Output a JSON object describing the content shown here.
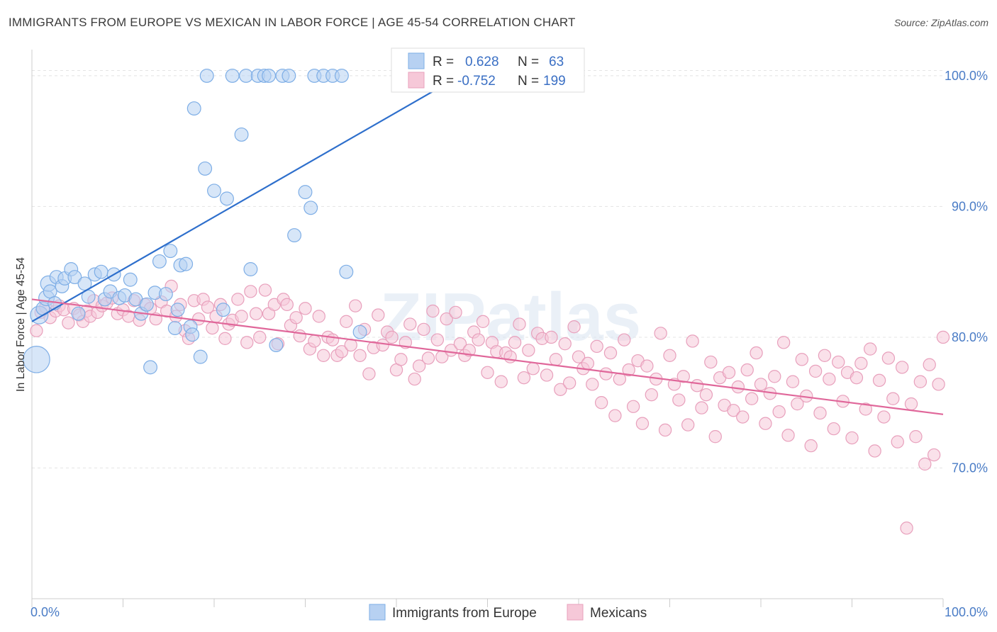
{
  "title": "IMMIGRANTS FROM EUROPE VS MEXICAN IN LABOR FORCE | AGE 45-54 CORRELATION CHART",
  "source": "Source: ZipAtlas.com",
  "watermark": "ZIPatlas",
  "chart_data": {
    "type": "scatter",
    "xlabel": "",
    "ylabel": "In Labor Force | Age 45-54",
    "xlim": [
      0,
      100
    ],
    "ylim": [
      60,
      102
    ],
    "x_tick_labels": [
      "0.0%",
      "100.0%"
    ],
    "y_ticks": [
      70,
      80,
      90,
      100
    ],
    "y_tick_labels": [
      "70.0%",
      "80.0%",
      "90.0%",
      "100.0%"
    ],
    "grid": true,
    "legend_position": "top-center",
    "stats": [
      {
        "r_label": "R =",
        "r_value": "0.628",
        "n_label": "N =",
        "n_value": "63"
      },
      {
        "r_label": "R =",
        "r_value": "-0.752",
        "n_label": "N =",
        "n_value": "199"
      }
    ],
    "series": [
      {
        "name": "Immigrants from Europe",
        "color": "#7eaee6",
        "fill": "#b7d1f2",
        "trend_color": "#2e6fcc",
        "trend": {
          "x": [
            0,
            47
          ],
          "y": [
            81.2,
            100
          ]
        },
        "points": [
          [
            0.5,
            78.3
          ],
          [
            0.8,
            81.7
          ],
          [
            1.2,
            82.2
          ],
          [
            1.6,
            83.0
          ],
          [
            1.8,
            84.1
          ],
          [
            2.0,
            83.5
          ],
          [
            2.5,
            82.6
          ],
          [
            2.7,
            84.6
          ],
          [
            3.3,
            83.9
          ],
          [
            3.6,
            84.5
          ],
          [
            4.3,
            85.2
          ],
          [
            4.7,
            84.6
          ],
          [
            5.1,
            81.8
          ],
          [
            5.8,
            84.1
          ],
          [
            6.2,
            83.1
          ],
          [
            6.9,
            84.8
          ],
          [
            7.6,
            85.0
          ],
          [
            8.0,
            82.9
          ],
          [
            8.6,
            83.5
          ],
          [
            9.0,
            84.8
          ],
          [
            9.6,
            83.0
          ],
          [
            10.2,
            83.2
          ],
          [
            10.8,
            84.4
          ],
          [
            11.4,
            82.9
          ],
          [
            12.0,
            81.8
          ],
          [
            12.6,
            82.5
          ],
          [
            13.0,
            77.7
          ],
          [
            13.5,
            83.4
          ],
          [
            14.0,
            85.8
          ],
          [
            14.7,
            83.3
          ],
          [
            15.2,
            86.6
          ],
          [
            15.7,
            80.7
          ],
          [
            16.0,
            82.1
          ],
          [
            16.3,
            85.5
          ],
          [
            16.9,
            85.6
          ],
          [
            17.4,
            80.8
          ],
          [
            17.6,
            80.2
          ],
          [
            17.8,
            97.5
          ],
          [
            18.5,
            78.5
          ],
          [
            19.0,
            92.9
          ],
          [
            19.2,
            100
          ],
          [
            20.0,
            91.2
          ],
          [
            21.0,
            82.1
          ],
          [
            21.4,
            90.6
          ],
          [
            22.0,
            100
          ],
          [
            23.0,
            95.5
          ],
          [
            23.5,
            100
          ],
          [
            24.0,
            85.2
          ],
          [
            24.8,
            100
          ],
          [
            25.5,
            100
          ],
          [
            26.0,
            100
          ],
          [
            26.8,
            79.4
          ],
          [
            27.5,
            100
          ],
          [
            28.2,
            100
          ],
          [
            28.8,
            87.8
          ],
          [
            30.0,
            91.1
          ],
          [
            30.6,
            89.9
          ],
          [
            31.0,
            100
          ],
          [
            32.0,
            100
          ],
          [
            33.0,
            100
          ],
          [
            34.0,
            100
          ],
          [
            34.5,
            85.0
          ],
          [
            36.0,
            80.4
          ]
        ],
        "sizes": [
          24,
          16,
          12,
          14,
          14,
          12,
          12,
          12,
          12,
          12,
          12,
          12,
          12,
          12,
          12,
          12,
          12,
          12,
          12,
          12,
          12,
          12,
          12,
          12,
          12,
          12,
          12,
          12,
          12,
          12,
          12,
          12,
          12,
          12,
          12,
          12,
          12,
          12,
          12,
          12,
          12,
          12,
          12,
          12,
          12,
          12,
          12,
          12,
          12,
          12,
          12,
          12,
          12,
          12,
          12,
          12,
          12,
          12,
          12,
          12,
          12,
          12,
          12
        ]
      },
      {
        "name": "Mexicans",
        "color": "#e8a0bc",
        "fill": "#f6c8d8",
        "trend_color": "#e0679a",
        "trend": {
          "x": [
            0,
            100
          ],
          "y": [
            82.9,
            74.1
          ]
        },
        "points": [
          [
            0.5,
            80.5
          ],
          [
            1.0,
            81.9
          ],
          [
            1.5,
            82.3
          ],
          [
            2.0,
            81.5
          ],
          [
            2.6,
            82.0
          ],
          [
            3.0,
            82.4
          ],
          [
            3.5,
            82.1
          ],
          [
            4.0,
            81.1
          ],
          [
            4.6,
            82.2
          ],
          [
            5.2,
            81.7
          ],
          [
            5.6,
            81.2
          ],
          [
            6.0,
            82.0
          ],
          [
            6.4,
            81.6
          ],
          [
            6.8,
            82.8
          ],
          [
            7.2,
            81.9
          ],
          [
            7.7,
            82.4
          ],
          [
            8.2,
            82.6
          ],
          [
            8.8,
            83.0
          ],
          [
            9.4,
            81.8
          ],
          [
            10.0,
            82.1
          ],
          [
            10.6,
            81.6
          ],
          [
            11.2,
            82.8
          ],
          [
            11.8,
            81.3
          ],
          [
            12.4,
            82.5
          ],
          [
            13.0,
            82.2
          ],
          [
            13.6,
            81.4
          ],
          [
            14.2,
            82.7
          ],
          [
            14.8,
            82.0
          ],
          [
            15.3,
            83.9
          ],
          [
            15.8,
            81.6
          ],
          [
            16.3,
            82.5
          ],
          [
            16.8,
            80.5
          ],
          [
            17.2,
            79.9
          ],
          [
            17.8,
            82.8
          ],
          [
            18.3,
            81.4
          ],
          [
            18.8,
            82.9
          ],
          [
            19.3,
            82.3
          ],
          [
            19.8,
            80.7
          ],
          [
            20.2,
            81.6
          ],
          [
            20.7,
            82.5
          ],
          [
            21.2,
            79.9
          ],
          [
            21.6,
            81.0
          ],
          [
            22.0,
            81.3
          ],
          [
            22.6,
            82.9
          ],
          [
            23.0,
            81.6
          ],
          [
            23.6,
            79.6
          ],
          [
            24.0,
            83.5
          ],
          [
            24.6,
            81.8
          ],
          [
            25.0,
            80.0
          ],
          [
            25.6,
            83.6
          ],
          [
            26.0,
            81.8
          ],
          [
            26.6,
            82.5
          ],
          [
            27.0,
            79.5
          ],
          [
            27.6,
            82.9
          ],
          [
            28.0,
            82.5
          ],
          [
            28.4,
            80.9
          ],
          [
            29.0,
            81.5
          ],
          [
            29.4,
            80.1
          ],
          [
            30.0,
            82.2
          ],
          [
            30.5,
            79.1
          ],
          [
            31.0,
            79.7
          ],
          [
            31.5,
            81.6
          ],
          [
            32.0,
            78.6
          ],
          [
            32.5,
            80.0
          ],
          [
            33.0,
            79.8
          ],
          [
            33.5,
            78.6
          ],
          [
            34.0,
            78.9
          ],
          [
            34.5,
            81.2
          ],
          [
            35.0,
            79.4
          ],
          [
            35.5,
            82.4
          ],
          [
            36.0,
            78.6
          ],
          [
            36.5,
            80.6
          ],
          [
            37.0,
            77.2
          ],
          [
            37.5,
            79.2
          ],
          [
            38.0,
            81.7
          ],
          [
            38.5,
            79.4
          ],
          [
            39.0,
            80.4
          ],
          [
            39.5,
            80.0
          ],
          [
            40.0,
            77.5
          ],
          [
            40.5,
            78.3
          ],
          [
            41.0,
            79.6
          ],
          [
            41.5,
            81.0
          ],
          [
            42.0,
            76.8
          ],
          [
            42.5,
            77.8
          ],
          [
            43.0,
            80.6
          ],
          [
            43.5,
            78.4
          ],
          [
            44.0,
            82.0
          ],
          [
            44.5,
            79.8
          ],
          [
            45.0,
            78.5
          ],
          [
            45.5,
            81.4
          ],
          [
            46.0,
            79.0
          ],
          [
            46.5,
            81.9
          ],
          [
            47.0,
            79.5
          ],
          [
            47.5,
            78.6
          ],
          [
            48.0,
            79.0
          ],
          [
            48.5,
            80.4
          ],
          [
            49.0,
            79.8
          ],
          [
            49.5,
            81.2
          ],
          [
            50.0,
            77.3
          ],
          [
            50.5,
            79.6
          ],
          [
            51.0,
            78.9
          ],
          [
            51.5,
            76.6
          ],
          [
            52.0,
            78.8
          ],
          [
            52.5,
            78.5
          ],
          [
            53.0,
            79.6
          ],
          [
            53.5,
            81.0
          ],
          [
            54.0,
            76.9
          ],
          [
            54.5,
            79.0
          ],
          [
            55.0,
            77.6
          ],
          [
            55.5,
            80.3
          ],
          [
            56.0,
            79.9
          ],
          [
            56.5,
            77.1
          ],
          [
            57.0,
            80.0
          ],
          [
            57.5,
            78.3
          ],
          [
            58.0,
            76.0
          ],
          [
            58.5,
            79.5
          ],
          [
            59.0,
            76.5
          ],
          [
            59.5,
            80.8
          ],
          [
            60.0,
            78.5
          ],
          [
            60.5,
            77.6
          ],
          [
            61.0,
            78.0
          ],
          [
            61.5,
            76.4
          ],
          [
            62.0,
            79.3
          ],
          [
            62.5,
            75.0
          ],
          [
            63.0,
            77.2
          ],
          [
            63.5,
            78.8
          ],
          [
            64.0,
            74.0
          ],
          [
            64.5,
            76.8
          ],
          [
            65.0,
            79.8
          ],
          [
            65.5,
            77.5
          ],
          [
            66.0,
            74.7
          ],
          [
            66.5,
            78.2
          ],
          [
            67.0,
            73.4
          ],
          [
            67.5,
            77.8
          ],
          [
            68.0,
            75.6
          ],
          [
            68.5,
            76.8
          ],
          [
            69.0,
            80.3
          ],
          [
            69.5,
            72.9
          ],
          [
            70.0,
            78.6
          ],
          [
            70.5,
            76.4
          ],
          [
            71.0,
            75.2
          ],
          [
            71.5,
            77.0
          ],
          [
            72.0,
            73.3
          ],
          [
            72.5,
            79.7
          ],
          [
            73.0,
            76.3
          ],
          [
            73.5,
            74.6
          ],
          [
            74.0,
            75.6
          ],
          [
            74.5,
            78.1
          ],
          [
            75.0,
            72.4
          ],
          [
            75.5,
            76.9
          ],
          [
            76.0,
            74.8
          ],
          [
            76.5,
            77.3
          ],
          [
            77.0,
            74.4
          ],
          [
            77.5,
            76.2
          ],
          [
            78.0,
            73.9
          ],
          [
            78.5,
            77.5
          ],
          [
            79.0,
            75.3
          ],
          [
            79.5,
            78.8
          ],
          [
            80.0,
            76.4
          ],
          [
            80.5,
            73.4
          ],
          [
            81.0,
            75.7
          ],
          [
            81.5,
            77.0
          ],
          [
            82.0,
            74.3
          ],
          [
            82.5,
            79.6
          ],
          [
            83.0,
            72.5
          ],
          [
            83.5,
            76.6
          ],
          [
            84.0,
            74.9
          ],
          [
            84.5,
            78.3
          ],
          [
            85.0,
            75.5
          ],
          [
            85.5,
            71.7
          ],
          [
            86.0,
            77.4
          ],
          [
            86.5,
            74.2
          ],
          [
            87.0,
            78.6
          ],
          [
            87.5,
            76.8
          ],
          [
            88.0,
            73.0
          ],
          [
            88.5,
            78.1
          ],
          [
            89.0,
            75.1
          ],
          [
            89.5,
            77.3
          ],
          [
            90.0,
            72.3
          ],
          [
            90.5,
            76.9
          ],
          [
            91.0,
            78.0
          ],
          [
            91.5,
            74.5
          ],
          [
            92.0,
            79.1
          ],
          [
            92.5,
            71.3
          ],
          [
            93.0,
            76.7
          ],
          [
            93.5,
            73.9
          ],
          [
            94.0,
            78.4
          ],
          [
            94.5,
            75.3
          ],
          [
            95.0,
            72.0
          ],
          [
            95.5,
            77.7
          ],
          [
            96.0,
            65.4
          ],
          [
            96.5,
            74.9
          ],
          [
            97.0,
            72.4
          ],
          [
            97.5,
            76.6
          ],
          [
            98.0,
            70.3
          ],
          [
            98.5,
            77.9
          ],
          [
            99.0,
            71.0
          ],
          [
            99.5,
            76.4
          ],
          [
            100.0,
            80.0
          ]
        ]
      }
    ]
  }
}
